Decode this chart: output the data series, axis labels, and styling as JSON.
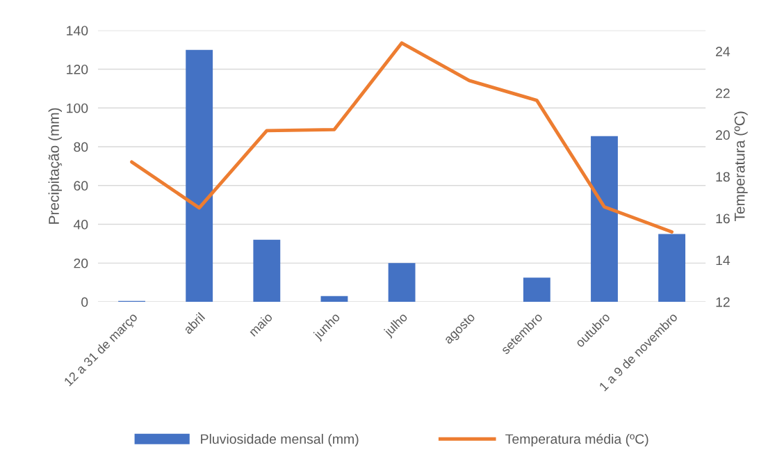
{
  "chart_data": {
    "type": "bar",
    "ylabel": "Precipitação (mm)",
    "y2label": "Temperatura (ºC)",
    "categories": [
      "12 a 31 de março",
      "abril",
      "maio",
      "junho",
      "julho",
      "agosto",
      "setembro",
      "outubro",
      "1 a 9 de novembro"
    ],
    "series": [
      {
        "name": "Pluviosidade mensal (mm)",
        "color": "#4472c4",
        "values": [
          0.5,
          130,
          32,
          3,
          20,
          0,
          12.5,
          85.5,
          35
        ]
      },
      {
        "name": "Temperatura média (ºC)",
        "color": "#ed7d31",
        "type": "line",
        "axis": "y2",
        "values": [
          18.7,
          16.5,
          20.2,
          20.25,
          24.4,
          22.6,
          21.65,
          16.55,
          15.35
        ]
      }
    ],
    "ylim": [
      0,
      140
    ],
    "yticks": [
      0,
      20,
      40,
      60,
      80,
      100,
      120,
      140
    ],
    "y2lim": [
      12,
      25
    ],
    "y2ticks": [
      12,
      14,
      16,
      18,
      20,
      22,
      24
    ],
    "grid": "y",
    "legend": "bottom",
    "marker": "none",
    "line_style": "solid"
  }
}
